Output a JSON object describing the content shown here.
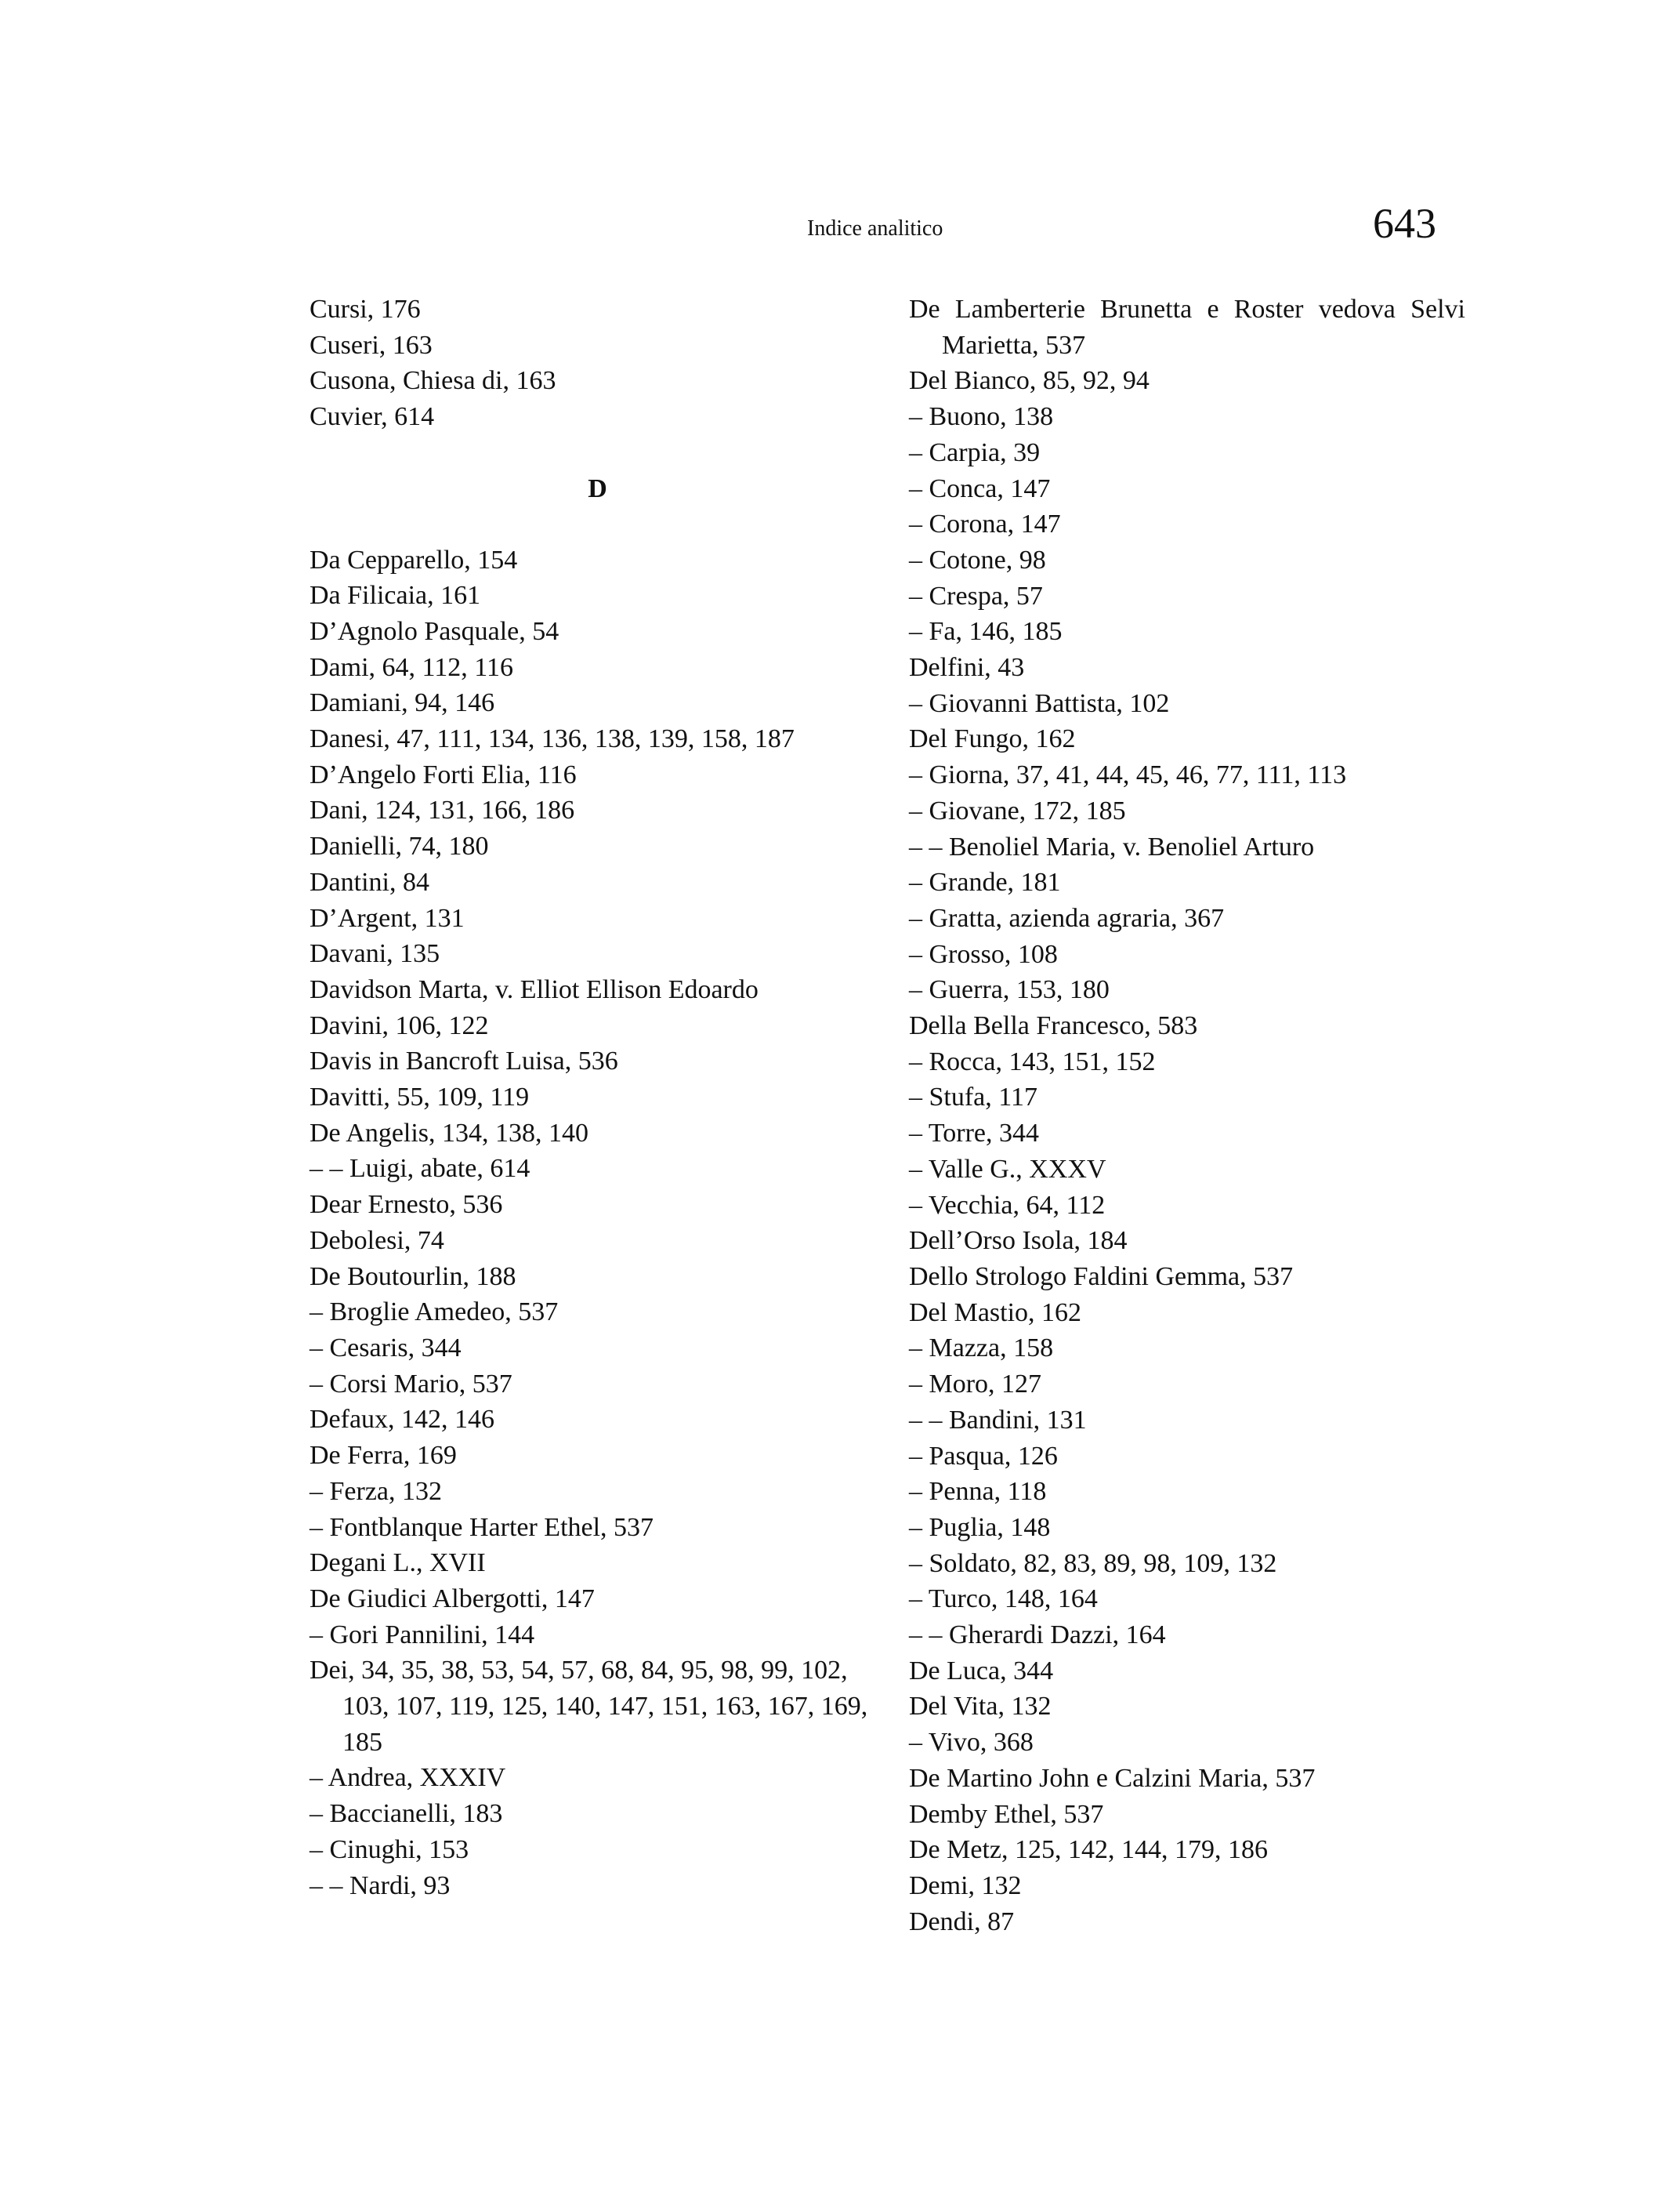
{
  "header": {
    "title": "Indice analitico",
    "page_number": "643"
  },
  "left_column": {
    "before_letter": [
      "Cursi, 176",
      "Cuseri, 163",
      "Cusona, Chiesa di, 163",
      "Cuvier, 614"
    ],
    "letter": "D",
    "after_letter": [
      "Da Cepparello, 154",
      "Da Filicaia, 161",
      "D’Agnolo Pasquale, 54",
      "Dami, 64, 112, 116",
      "Damiani, 94, 146",
      "Danesi, 47, 111, 134, 136, 138, 139, 158, 187",
      "D’Angelo Forti Elia, 116",
      "Dani, 124, 131, 166, 186",
      "Danielli, 74, 180",
      "Dantini, 84",
      "D’Argent, 131",
      "Davani, 135",
      "Davidson Marta, v. Elliot Ellison Edoardo",
      "Davini, 106, 122",
      "Davis in Bancroft Luisa, 536",
      "Davitti, 55, 109, 119",
      "De Angelis, 134, 138, 140",
      "– – Luigi, abate, 614",
      "Dear Ernesto, 536",
      "Debolesi, 74",
      "De Boutourlin, 188",
      "– Broglie Amedeo, 537",
      "– Cesaris, 344",
      "– Corsi Mario, 537",
      "Defaux, 142, 146",
      "De Ferra, 169",
      "– Ferza, 132",
      "– Fontblanque Harter Ethel, 537",
      "Degani L., XVII",
      "De Giudici Albergotti, 147",
      "– Gori Pannilini, 144",
      "Dei, 34, 35, 38, 53, 54, 57, 68, 84, 95, 98, 99, 102, 103, 107, 119, 125, 140, 147, 151, 163, 167, 169, 185",
      "– Andrea, XXXIV",
      "– Baccianelli, 183",
      "– Cinughi, 153",
      "– – Nardi, 93"
    ]
  },
  "right_column": {
    "entries": [
      "De Lamberterie Brunetta e Roster vedova Selvi Marietta, 537",
      "Del Bianco, 85, 92, 94",
      "– Buono, 138",
      "– Carpia, 39",
      "– Conca, 147",
      "– Corona, 147",
      "– Cotone, 98",
      "– Crespa, 57",
      "– Fa, 146, 185",
      "Delfini, 43",
      "– Giovanni Battista, 102",
      "Del Fungo, 162",
      "– Giorna, 37, 41, 44, 45, 46, 77, 111, 113",
      "– Giovane, 172, 185",
      "– – Benoliel Maria, v. Benoliel Arturo",
      "– Grande, 181",
      "– Gratta, azienda agraria, 367",
      "– Grosso, 108",
      "– Guerra, 153, 180",
      "Della Bella Francesco, 583",
      "– Rocca, 143, 151, 152",
      "– Stufa, 117",
      "– Torre, 344",
      "– Valle G., XXXV",
      "– Vecchia, 64, 112",
      "Dell’Orso Isola, 184",
      "Dello Strologo Faldini Gemma, 537",
      "Del Mastio, 162",
      "– Mazza, 158",
      "– Moro, 127",
      "– – Bandini, 131",
      "– Pasqua, 126",
      "– Penna, 118",
      "– Puglia, 148",
      "– Soldato, 82, 83, 89, 98, 109, 132",
      "– Turco, 148, 164",
      "– – Gherardi Dazzi, 164",
      "De Luca, 344",
      "Del Vita, 132",
      "– Vivo, 368",
      "De Martino John e Calzini Maria, 537",
      "Demby Ethel, 537",
      "De Metz, 125, 142, 144, 179, 186",
      "Demi, 132",
      "Dendi, 87"
    ]
  }
}
